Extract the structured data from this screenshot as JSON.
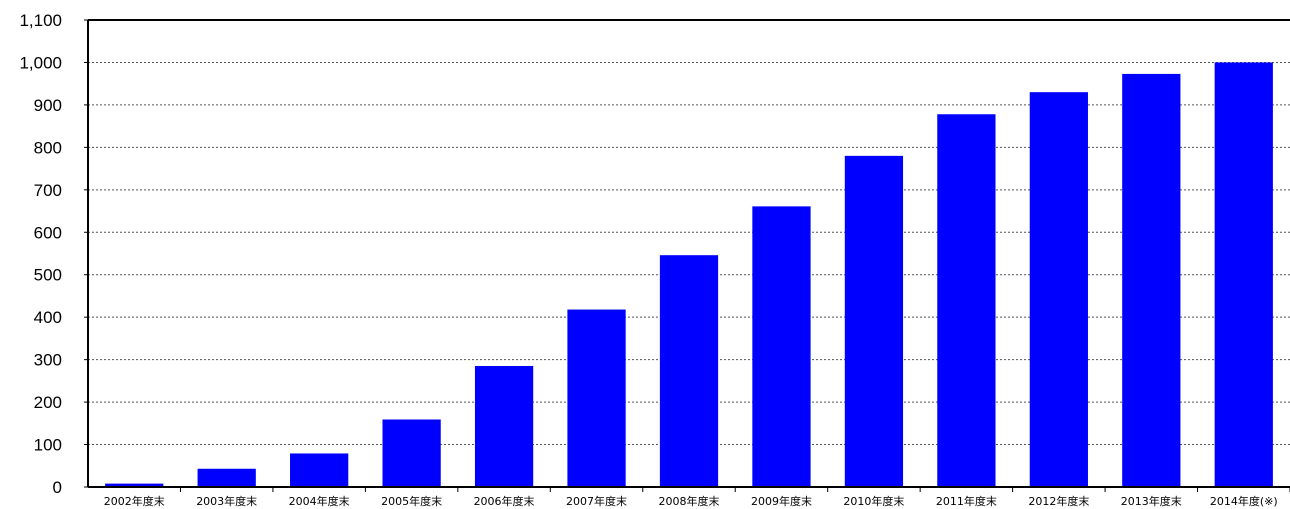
{
  "chart_data": {
    "type": "bar",
    "categories": [
      "2002年度末",
      "2003年度末",
      "2004年度末",
      "2005年度末",
      "2006年度末",
      "2007年度末",
      "2008年度末",
      "2009年度末",
      "2010年度末",
      "2011年度末",
      "2012年度末",
      "2013年度末",
      "2014年度(※)"
    ],
    "values": [
      8,
      43,
      79,
      159,
      285,
      418,
      546,
      661,
      780,
      878,
      930,
      973,
      1000
    ],
    "title": "",
    "xlabel": "",
    "ylabel": "",
    "ylim": [
      0,
      1100
    ],
    "yticks": [
      0,
      100,
      200,
      300,
      400,
      500,
      600,
      700,
      800,
      900,
      1000,
      1100
    ],
    "ytick_labels": [
      "0",
      "100",
      "200",
      "300",
      "400",
      "500",
      "600",
      "700",
      "800",
      "900",
      "1,000",
      "1,100"
    ],
    "grid": true,
    "legend": "none",
    "bar_color": "#0000FF"
  }
}
